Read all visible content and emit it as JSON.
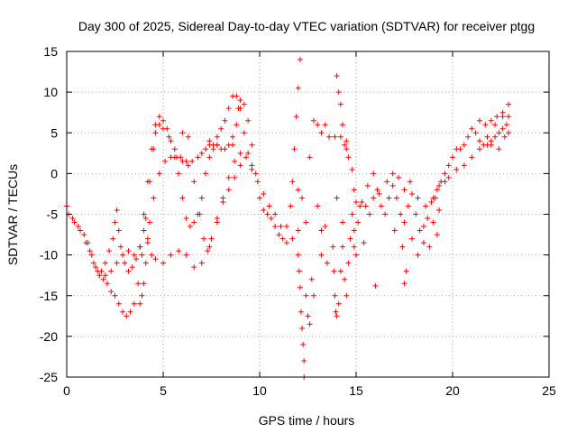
{
  "chart_data": {
    "type": "scatter",
    "title": "Day 300 of 2025, Sidereal Day-to-day VTEC variation (SDTVAR) for receiver ptgg",
    "xlabel": "GPS time / hours",
    "ylabel": "SDTVAR / TECUs",
    "xlim": [
      0,
      25
    ],
    "ylim": [
      -25,
      15
    ],
    "xticks": [
      0,
      5,
      10,
      15,
      20,
      25
    ],
    "yticks": [
      -25,
      -20,
      -15,
      -10,
      -5,
      0,
      5,
      10,
      15
    ],
    "grid": true,
    "marker": "plus",
    "color": "#ff0000",
    "series": [
      {
        "points": [
          [
            0.0,
            -4.0
          ],
          [
            0.3,
            -5.5
          ],
          [
            0.6,
            -6.5
          ],
          [
            0.9,
            -7.5
          ],
          [
            1.1,
            -8.5
          ],
          [
            1.3,
            -10.0
          ],
          [
            1.5,
            -11.5
          ],
          [
            1.7,
            -12.5
          ],
          [
            1.9,
            -13.0
          ],
          [
            2.1,
            -13.5
          ],
          [
            2.3,
            -14.5
          ],
          [
            2.5,
            -15.0
          ],
          [
            2.7,
            -16.0
          ],
          [
            2.9,
            -17.0
          ],
          [
            3.1,
            -17.5
          ],
          [
            3.3,
            -17.0
          ],
          [
            3.5,
            -16.0
          ],
          [
            3.7,
            -13.5
          ],
          [
            3.9,
            -10.0
          ],
          [
            4.1,
            -5.5
          ],
          [
            4.3,
            -1.0
          ],
          [
            4.5,
            3.0
          ],
          [
            4.6,
            5.0
          ],
          [
            4.8,
            6.0
          ],
          [
            5.0,
            5.5
          ],
          [
            5.3,
            4.5
          ],
          [
            5.6,
            3.0
          ],
          [
            5.9,
            2.0
          ],
          [
            6.2,
            1.5
          ],
          [
            6.5,
            1.5
          ],
          [
            6.8,
            2.0
          ],
          [
            7.0,
            2.5
          ],
          [
            7.2,
            3.0
          ],
          [
            7.4,
            3.5
          ],
          [
            7.6,
            3.5
          ],
          [
            7.8,
            3.5
          ],
          [
            8.0,
            3.0
          ],
          [
            8.2,
            3.0
          ],
          [
            8.4,
            3.5
          ],
          [
            8.6,
            4.5
          ],
          [
            8.8,
            6.0
          ],
          [
            8.9,
            8.0
          ],
          [
            9.0,
            9.0
          ],
          [
            9.2,
            8.5
          ],
          [
            9.4,
            6.5
          ],
          [
            9.6,
            3.5
          ],
          [
            9.8,
            0.0
          ],
          [
            10.0,
            -3.0
          ],
          [
            10.2,
            -4.5
          ],
          [
            10.4,
            -5.0
          ],
          [
            10.6,
            -5.5
          ],
          [
            10.8,
            -6.5
          ],
          [
            11.0,
            -7.5
          ],
          [
            11.2,
            -8.0
          ],
          [
            11.4,
            -6.5
          ],
          [
            11.6,
            -4.0
          ],
          [
            11.7,
            -1.0
          ],
          [
            11.8,
            3.0
          ],
          [
            11.9,
            7.0
          ],
          [
            12.0,
            10.5
          ],
          [
            12.1,
            14.0
          ]
        ]
      },
      {
        "points": [
          [
            0.1,
            -5.0
          ],
          [
            0.4,
            -6.0
          ],
          [
            0.7,
            -7.0
          ],
          [
            1.0,
            -8.5
          ],
          [
            1.2,
            -9.5
          ],
          [
            1.4,
            -11.0
          ],
          [
            1.6,
            -12.0
          ],
          [
            1.8,
            -12.0
          ],
          [
            2.0,
            -11.0
          ],
          [
            2.2,
            -9.5
          ],
          [
            2.4,
            -8.0
          ],
          [
            2.5,
            -6.0
          ],
          [
            2.6,
            -4.5
          ],
          [
            2.7,
            -7.0
          ],
          [
            2.8,
            -9.0
          ],
          [
            3.0,
            -11.0
          ],
          [
            3.2,
            -12.0
          ],
          [
            3.4,
            -11.5
          ],
          [
            3.6,
            -10.5
          ],
          [
            3.8,
            -9.0
          ],
          [
            4.0,
            -5.0
          ],
          [
            4.2,
            -1.0
          ],
          [
            4.4,
            3.0
          ],
          [
            4.6,
            6.0
          ],
          [
            4.8,
            7.0
          ],
          [
            5.0,
            6.5
          ],
          [
            5.2,
            5.5
          ],
          [
            5.4,
            4.0
          ],
          [
            5.6,
            2.0
          ],
          [
            5.8,
            0.0
          ],
          [
            6.0,
            -3.0
          ],
          [
            6.2,
            -5.5
          ],
          [
            6.4,
            -6.5
          ],
          [
            6.6,
            -6.0
          ],
          [
            6.8,
            -5.0
          ],
          [
            7.0,
            -3.0
          ],
          [
            7.2,
            0.0
          ],
          [
            7.4,
            2.0
          ],
          [
            7.6,
            3.0
          ],
          [
            7.8,
            4.5
          ],
          [
            8.0,
            5.5
          ],
          [
            8.2,
            6.5
          ],
          [
            8.4,
            8.0
          ],
          [
            8.6,
            9.5
          ],
          [
            8.8,
            9.5
          ],
          [
            9.0,
            8.0
          ],
          [
            9.2,
            5.0
          ],
          [
            9.4,
            2.5
          ],
          [
            9.6,
            1.0
          ]
        ]
      },
      {
        "points": [
          [
            2.0,
            -12.5
          ],
          [
            2.3,
            -12.0
          ],
          [
            2.6,
            -11.0
          ],
          [
            2.9,
            -10.0
          ],
          [
            3.2,
            -9.5
          ],
          [
            3.5,
            -10.0
          ],
          [
            3.8,
            -9.0
          ],
          [
            4.0,
            -7.0
          ],
          [
            4.2,
            -8.0
          ],
          [
            4.4,
            -10.0
          ],
          [
            4.6,
            -10.5
          ],
          [
            5.0,
            -11.0
          ],
          [
            5.4,
            -10.0
          ],
          [
            5.8,
            -9.5
          ],
          [
            6.2,
            -10.0
          ],
          [
            6.6,
            -11.5
          ],
          [
            7.0,
            -11.0
          ],
          [
            7.4,
            -9.0
          ],
          [
            7.8,
            -6.0
          ],
          [
            8.1,
            -3.0
          ],
          [
            8.4,
            -0.5
          ],
          [
            8.7,
            1.5
          ],
          [
            9.0,
            2.5
          ],
          [
            9.3,
            2.0
          ],
          [
            9.6,
            0.5
          ],
          [
            9.9,
            -1.0
          ],
          [
            10.2,
            -2.5
          ],
          [
            10.5,
            -4.0
          ],
          [
            10.8,
            -5.0
          ],
          [
            11.1,
            -6.5
          ],
          [
            11.4,
            -8.5
          ],
          [
            11.7,
            -8.0
          ],
          [
            12.0,
            -2.0
          ]
        ]
      },
      {
        "points": [
          [
            3.8,
            -16.0
          ],
          [
            3.9,
            -15.0
          ],
          [
            4.0,
            -13.5
          ],
          [
            4.1,
            -11.0
          ],
          [
            4.2,
            -8.5
          ],
          [
            4.3,
            -6.0
          ],
          [
            4.5,
            -3.0
          ],
          [
            4.8,
            0.0
          ],
          [
            5.1,
            1.5
          ],
          [
            5.4,
            2.0
          ],
          [
            5.7,
            2.0
          ],
          [
            6.0,
            1.5
          ],
          [
            6.3,
            1.0
          ],
          [
            6.6,
            -1.0
          ],
          [
            6.9,
            -5.0
          ],
          [
            7.1,
            -8.0
          ],
          [
            7.3,
            -9.5
          ],
          [
            7.5,
            -8.0
          ],
          [
            7.8,
            -5.5
          ],
          [
            8.1,
            -3.5
          ],
          [
            8.4,
            -2.0
          ],
          [
            8.7,
            -0.5
          ],
          [
            9.0,
            1.0
          ],
          [
            6.0,
            5.0
          ],
          [
            6.3,
            4.5
          ],
          [
            7.4,
            4.0
          ],
          [
            7.8,
            3.5
          ],
          [
            8.6,
            3.5
          ]
        ]
      },
      {
        "points": [
          [
            12.0,
            -10.0
          ],
          [
            12.05,
            -12.0
          ],
          [
            12.1,
            -14.0
          ],
          [
            12.15,
            -17.0
          ],
          [
            12.2,
            -19.0
          ],
          [
            12.25,
            -21.0
          ],
          [
            12.3,
            -23.0
          ],
          [
            12.3,
            -25.0
          ],
          [
            12.4,
            -15.0
          ],
          [
            12.5,
            -17.5
          ],
          [
            12.6,
            -18.5
          ],
          [
            12.0,
            -7.0
          ],
          [
            12.2,
            -3.0
          ],
          [
            12.4,
            -6.0
          ],
          [
            12.6,
            2.0
          ],
          [
            12.8,
            6.5
          ],
          [
            13.0,
            6.0
          ],
          [
            13.2,
            5.0
          ],
          [
            13.4,
            6.0
          ],
          [
            13.6,
            4.5
          ],
          [
            13.0,
            -4.0
          ],
          [
            13.2,
            -7.0
          ],
          [
            13.4,
            -6.5
          ],
          [
            13.2,
            -10.0
          ],
          [
            13.5,
            -11.0
          ],
          [
            12.7,
            -13.0
          ],
          [
            12.8,
            -15.0
          ]
        ]
      },
      {
        "points": [
          [
            13.8,
            -9.0
          ],
          [
            13.85,
            -12.0
          ],
          [
            13.9,
            -15.0
          ],
          [
            13.95,
            -17.0
          ],
          [
            14.0,
            -17.5
          ],
          [
            14.1,
            -16.0
          ],
          [
            14.2,
            -12.0
          ],
          [
            14.3,
            -9.0
          ],
          [
            14.4,
            -13.0
          ],
          [
            14.5,
            -15.0
          ],
          [
            14.6,
            -11.0
          ],
          [
            14.7,
            -8.0
          ],
          [
            14.8,
            -5.0
          ],
          [
            14.9,
            -7.0
          ],
          [
            15.0,
            -10.0
          ],
          [
            15.1,
            -6.0
          ],
          [
            14.0,
            12.0
          ],
          [
            14.1,
            10.0
          ],
          [
            14.2,
            8.5
          ],
          [
            14.3,
            6.0
          ],
          [
            14.4,
            3.5
          ],
          [
            14.5,
            3.0
          ],
          [
            14.6,
            2.0
          ],
          [
            14.8,
            0.5
          ],
          [
            14.9,
            -2.0
          ],
          [
            15.0,
            -3.5
          ],
          [
            15.2,
            -4.0
          ],
          [
            13.9,
            4.5
          ],
          [
            14.2,
            4.5
          ],
          [
            14.5,
            4.0
          ],
          [
            14.9,
            -9.0
          ],
          [
            14.0,
            -3.0
          ],
          [
            14.3,
            -6.0
          ],
          [
            15.4,
            -8.5
          ]
        ]
      },
      {
        "points": [
          [
            15.3,
            -3.5
          ],
          [
            15.5,
            -4.0
          ],
          [
            15.7,
            -5.0
          ],
          [
            15.9,
            -3.0
          ],
          [
            16.1,
            -2.0
          ],
          [
            16.3,
            -4.0
          ],
          [
            16.5,
            -5.0
          ],
          [
            16.7,
            -3.0
          ],
          [
            16.9,
            -1.5
          ],
          [
            17.1,
            -3.0
          ],
          [
            17.3,
            -5.0
          ],
          [
            17.5,
            -6.0
          ],
          [
            17.7,
            -4.0
          ],
          [
            17.9,
            -2.5
          ],
          [
            18.1,
            -5.0
          ],
          [
            18.3,
            -7.0
          ],
          [
            18.5,
            -6.5
          ],
          [
            18.7,
            -5.5
          ],
          [
            18.9,
            -3.5
          ],
          [
            19.1,
            -3.0
          ],
          [
            19.3,
            -4.5
          ],
          [
            15.6,
            -1.5
          ],
          [
            15.9,
            0.0
          ],
          [
            16.2,
            -2.5
          ],
          [
            16.6,
            -1.0
          ],
          [
            16.9,
            0.0
          ],
          [
            17.2,
            -0.5
          ],
          [
            17.5,
            -2.0
          ],
          [
            17.8,
            -1.0
          ],
          [
            18.2,
            -3.0
          ],
          [
            18.6,
            -4.0
          ],
          [
            19.0,
            -6.0
          ],
          [
            19.2,
            -7.5
          ],
          [
            17.0,
            -7.0
          ],
          [
            17.4,
            -9.0
          ],
          [
            17.6,
            -12.0
          ],
          [
            17.5,
            -13.5
          ],
          [
            16.0,
            -13.8
          ],
          [
            17.9,
            -8.0
          ],
          [
            18.2,
            -10.0
          ],
          [
            18.5,
            -8.5
          ],
          [
            18.8,
            -9.0
          ]
        ]
      },
      {
        "points": [
          [
            19.0,
            -3.0
          ],
          [
            19.2,
            -2.0
          ],
          [
            19.4,
            -1.0
          ],
          [
            19.6,
            0.0
          ],
          [
            19.8,
            1.0
          ],
          [
            20.0,
            2.0
          ],
          [
            20.2,
            3.0
          ],
          [
            20.4,
            3.0
          ],
          [
            20.6,
            3.5
          ],
          [
            20.8,
            4.5
          ],
          [
            21.0,
            5.5
          ],
          [
            21.2,
            5.0
          ],
          [
            21.4,
            4.0
          ],
          [
            21.6,
            3.5
          ],
          [
            21.8,
            3.5
          ],
          [
            22.0,
            4.0
          ],
          [
            22.2,
            4.5
          ],
          [
            22.4,
            5.0
          ],
          [
            22.6,
            5.5
          ],
          [
            22.8,
            6.0
          ],
          [
            21.4,
            6.5
          ],
          [
            21.7,
            6.0
          ],
          [
            22.0,
            6.5
          ],
          [
            22.3,
            7.0
          ],
          [
            22.6,
            7.5
          ],
          [
            22.9,
            7.0
          ],
          [
            22.0,
            3.5
          ],
          [
            22.4,
            3.0
          ],
          [
            22.7,
            4.5
          ],
          [
            22.9,
            5.0
          ],
          [
            19.3,
            -1.5
          ],
          [
            19.6,
            -1.0
          ],
          [
            19.8,
            -0.5
          ],
          [
            20.2,
            0.5
          ],
          [
            20.6,
            1.0
          ],
          [
            21.0,
            2.0
          ],
          [
            21.4,
            3.0
          ],
          [
            21.8,
            4.5
          ],
          [
            22.2,
            6.0
          ],
          [
            22.6,
            7.0
          ],
          [
            22.9,
            8.5
          ]
        ]
      }
    ]
  }
}
